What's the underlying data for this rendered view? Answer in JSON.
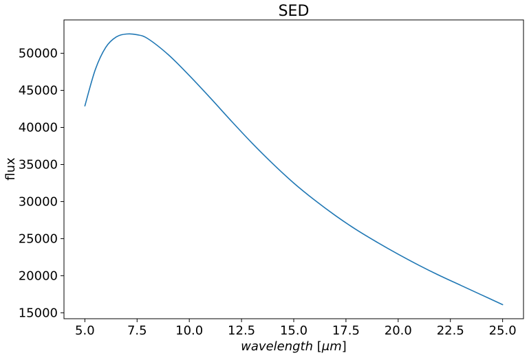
{
  "chart_data": {
    "type": "line",
    "title": "SED",
    "xlabel_parts": {
      "italic": "wavelength",
      "unit_open": " [",
      "unit_italic": "μm",
      "unit_close": "]"
    },
    "ylabel": "flux",
    "xlim": [
      4.0,
      26.0
    ],
    "ylim": [
      14200,
      54500
    ],
    "grid": false,
    "x_ticks": [
      5.0,
      7.5,
      10.0,
      12.5,
      15.0,
      17.5,
      20.0,
      22.5,
      25.0
    ],
    "x_tick_labels": [
      "5.0",
      "7.5",
      "10.0",
      "12.5",
      "15.0",
      "17.5",
      "20.0",
      "22.5",
      "25.0"
    ],
    "y_ticks": [
      15000,
      20000,
      25000,
      30000,
      35000,
      40000,
      45000,
      50000
    ],
    "y_tick_labels": [
      "15000",
      "20000",
      "25000",
      "30000",
      "35000",
      "40000",
      "45000",
      "50000"
    ],
    "series": [
      {
        "color": "#1f77b4",
        "x": [
          5.0,
          5.5,
          6.0,
          6.5,
          7.0,
          7.5,
          8.0,
          9.0,
          10.0,
          11.0,
          12.0,
          13.0,
          14.0,
          15.0,
          16.0,
          17.0,
          18.0,
          19.0,
          20.0,
          21.0,
          22.0,
          23.0,
          24.0,
          25.0
        ],
        "y": [
          42900,
          47800,
          50800,
          52200,
          52600,
          52500,
          52000,
          49800,
          47000,
          44000,
          40900,
          37900,
          35100,
          32500,
          30200,
          28100,
          26200,
          24500,
          22900,
          21400,
          20000,
          18700,
          17400,
          16100
        ]
      }
    ]
  }
}
